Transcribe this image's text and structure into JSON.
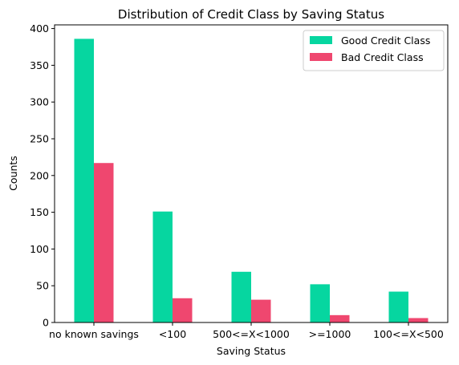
{
  "chart_data": {
    "type": "bar",
    "title": "Distribution of Credit Class by Saving Status",
    "xlabel": "Saving Status",
    "ylabel": "Counts",
    "categories": [
      "no known savings",
      "<100",
      "500<=X<1000",
      ">=1000",
      "100<=X<500"
    ],
    "series": [
      {
        "name": "Good Credit Class",
        "color": "#06d6a0",
        "values": [
          386,
          151,
          69,
          52,
          42
        ]
      },
      {
        "name": "Bad Credit Class",
        "color": "#ef476f",
        "values": [
          217,
          33,
          31,
          10,
          6
        ]
      }
    ],
    "ylim": [
      0,
      405
    ],
    "yticks": [
      0,
      50,
      100,
      150,
      200,
      250,
      300,
      350,
      400
    ],
    "grid": false,
    "legend_position": "top-right"
  }
}
